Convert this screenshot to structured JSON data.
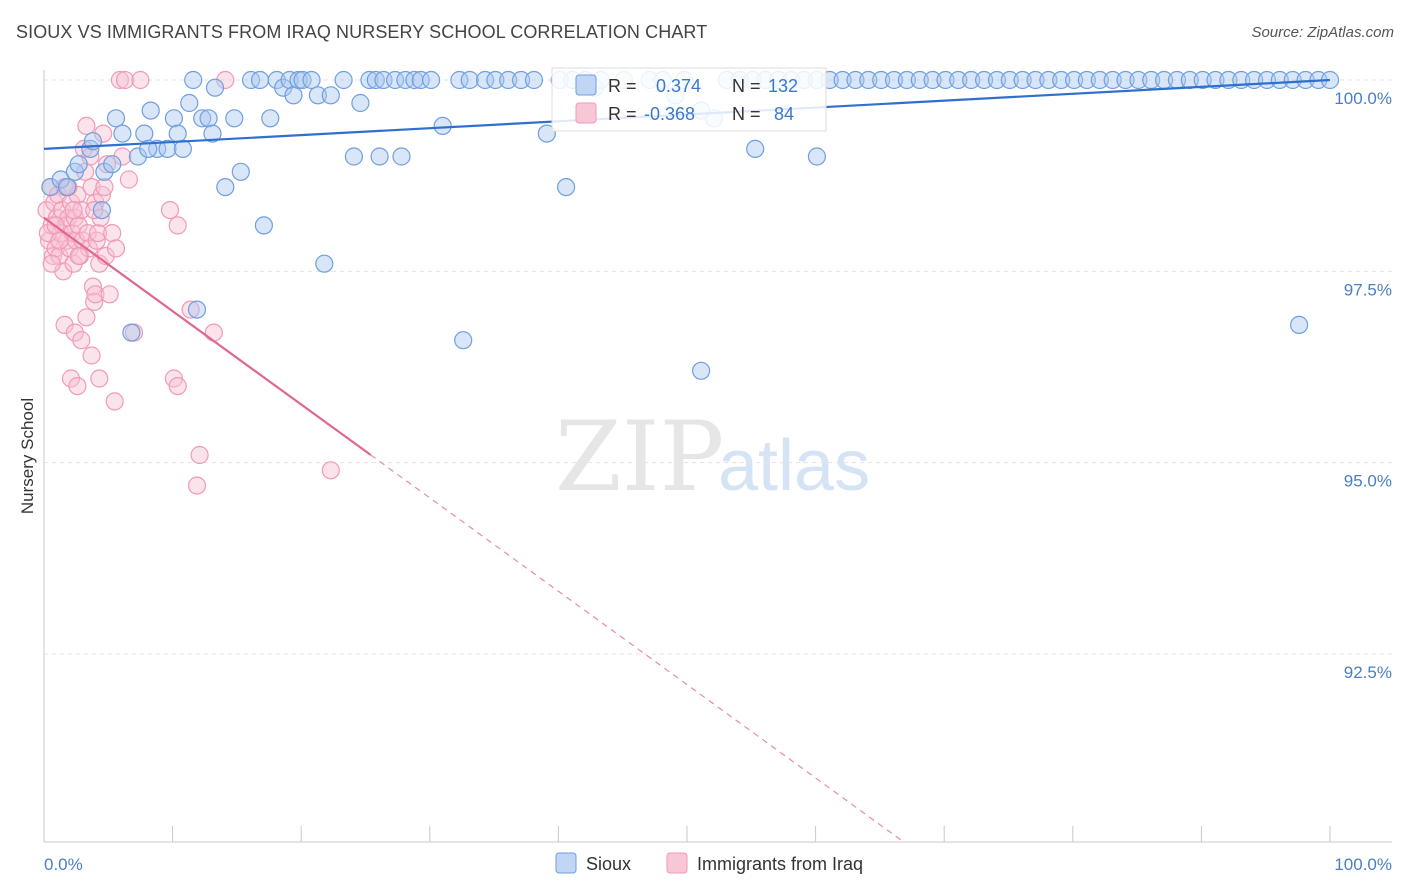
{
  "title": "SIOUX VS IMMIGRANTS FROM IRAQ NURSERY SCHOOL CORRELATION CHART",
  "source": "Source: ZipAtlas.com",
  "watermark": {
    "zip": "ZIP",
    "atlas": "atlas"
  },
  "colors": {
    "sioux": "#6f9fe0",
    "sioux_line": "#2f6fcf",
    "iraq": "#f19ab6",
    "iraq_line": "#e0688f",
    "axis_text": "#4a7fc1"
  },
  "stats": {
    "r_label": "R =",
    "n_label": "N =",
    "sioux": {
      "r": "0.374",
      "n": "132"
    },
    "iraq": {
      "r": "-0.368",
      "n": "84"
    }
  },
  "legend": {
    "sioux": "Sioux",
    "iraq": "Immigrants from Iraq"
  },
  "chart_data": {
    "type": "scatter",
    "title": "SIOUX VS IMMIGRANTS FROM IRAQ NURSERY SCHOOL CORRELATION CHART",
    "xlabel": "",
    "ylabel": "Nursery School",
    "xlim": [
      0,
      100
    ],
    "ylim": [
      90.0,
      100.4
    ],
    "x_tick_labels": [
      "0.0%",
      "100.0%"
    ],
    "y_ticks": [
      100.0,
      97.5,
      95.0,
      92.5
    ],
    "y_tick_labels": [
      "100.0%",
      "97.5%",
      "95.0%",
      "92.5%"
    ],
    "series": [
      {
        "name": "Sioux",
        "r": 0.374,
        "n": 132,
        "trend": {
          "x0": 0,
          "y0": 99.1,
          "x1": 100,
          "y1": 100.0,
          "dashed_from": null
        },
        "points": [
          [
            0.5,
            98.6
          ],
          [
            1.3,
            98.7
          ],
          [
            1.8,
            98.6
          ],
          [
            2.4,
            98.8
          ],
          [
            2.7,
            98.9
          ],
          [
            3.6,
            99.1
          ],
          [
            3.8,
            99.2
          ],
          [
            4.5,
            98.3
          ],
          [
            4.7,
            98.8
          ],
          [
            5.3,
            98.9
          ],
          [
            5.6,
            99.5
          ],
          [
            6.1,
            99.3
          ],
          [
            7.3,
            99.0
          ],
          [
            7.8,
            99.3
          ],
          [
            8.3,
            99.6
          ],
          [
            8.8,
            99.1
          ],
          [
            9.6,
            99.1
          ],
          [
            10.1,
            99.5
          ],
          [
            10.4,
            99.3
          ],
          [
            10.8,
            99.1
          ],
          [
            11.3,
            99.7
          ],
          [
            11.6,
            100.0
          ],
          [
            12.3,
            99.5
          ],
          [
            12.8,
            99.5
          ],
          [
            13.1,
            99.3
          ],
          [
            13.3,
            99.9
          ],
          [
            14.1,
            98.6
          ],
          [
            14.8,
            99.5
          ],
          [
            15.3,
            98.8
          ],
          [
            16.1,
            100.0
          ],
          [
            16.8,
            100.0
          ],
          [
            17.1,
            98.1
          ],
          [
            17.6,
            99.5
          ],
          [
            18.1,
            100.0
          ],
          [
            18.6,
            99.9
          ],
          [
            19.1,
            100.0
          ],
          [
            19.4,
            99.8
          ],
          [
            19.8,
            100.0
          ],
          [
            20.1,
            100.0
          ],
          [
            20.8,
            100.0
          ],
          [
            21.3,
            99.8
          ],
          [
            21.8,
            97.6
          ],
          [
            22.3,
            99.8
          ],
          [
            23.3,
            100.0
          ],
          [
            24.1,
            99.0
          ],
          [
            24.6,
            99.7
          ],
          [
            25.3,
            100.0
          ],
          [
            25.8,
            100.0
          ],
          [
            26.4,
            100.0
          ],
          [
            27.3,
            100.0
          ],
          [
            27.8,
            99.0
          ],
          [
            28.1,
            100.0
          ],
          [
            28.8,
            100.0
          ],
          [
            29.3,
            100.0
          ],
          [
            30.1,
            100.0
          ],
          [
            31.0,
            99.4
          ],
          [
            32.3,
            100.0
          ],
          [
            33.1,
            100.0
          ],
          [
            34.3,
            100.0
          ],
          [
            35.1,
            100.0
          ],
          [
            36.1,
            100.0
          ],
          [
            37.1,
            100.0
          ],
          [
            38.1,
            100.0
          ],
          [
            39.1,
            99.3
          ],
          [
            40.1,
            100.0
          ],
          [
            41.1,
            100.0
          ],
          [
            42.1,
            100.0
          ],
          [
            42.8,
            99.9
          ],
          [
            43.3,
            100.0
          ],
          [
            45.1,
            100.0
          ],
          [
            47.1,
            100.0
          ],
          [
            48.1,
            100.0
          ],
          [
            49.1,
            99.8
          ],
          [
            49.8,
            100.0
          ],
          [
            51.1,
            99.6
          ],
          [
            52.1,
            99.5
          ],
          [
            53.1,
            100.0
          ],
          [
            54.1,
            100.0
          ],
          [
            55.1,
            100.0
          ],
          [
            56.1,
            100.0
          ],
          [
            57.1,
            100.0
          ],
          [
            58.1,
            100.0
          ],
          [
            59.1,
            100.0
          ],
          [
            60.1,
            100.0
          ],
          [
            61.1,
            100.0
          ],
          [
            62.1,
            100.0
          ],
          [
            63.1,
            100.0
          ],
          [
            64.1,
            100.0
          ],
          [
            65.1,
            100.0
          ],
          [
            66.1,
            100.0
          ],
          [
            67.1,
            100.0
          ],
          [
            68.1,
            100.0
          ],
          [
            69.1,
            100.0
          ],
          [
            70.1,
            100.0
          ],
          [
            71.1,
            100.0
          ],
          [
            72.1,
            100.0
          ],
          [
            73.1,
            100.0
          ],
          [
            74.1,
            100.0
          ],
          [
            75.1,
            100.0
          ],
          [
            76.1,
            100.0
          ],
          [
            77.1,
            100.0
          ],
          [
            78.1,
            100.0
          ],
          [
            79.1,
            100.0
          ],
          [
            80.1,
            100.0
          ],
          [
            81.1,
            100.0
          ],
          [
            82.1,
            100.0
          ],
          [
            83.1,
            100.0
          ],
          [
            84.1,
            100.0
          ],
          [
            85.1,
            100.0
          ],
          [
            86.1,
            100.0
          ],
          [
            87.1,
            100.0
          ],
          [
            88.1,
            100.0
          ],
          [
            89.1,
            100.0
          ],
          [
            90.1,
            100.0
          ],
          [
            91.1,
            100.0
          ],
          [
            92.1,
            100.0
          ],
          [
            93.1,
            100.0
          ],
          [
            94.1,
            100.0
          ],
          [
            95.1,
            100.0
          ],
          [
            96.1,
            100.0
          ],
          [
            97.1,
            100.0
          ],
          [
            98.1,
            100.0
          ],
          [
            99.1,
            100.0
          ],
          [
            100.0,
            100.0
          ],
          [
            11.9,
            97.0
          ],
          [
            6.8,
            96.7
          ],
          [
            32.6,
            96.6
          ],
          [
            51.1,
            96.2
          ],
          [
            97.6,
            96.8
          ],
          [
            8.1,
            99.1
          ],
          [
            26.1,
            99.0
          ],
          [
            40.6,
            98.6
          ],
          [
            55.3,
            99.1
          ],
          [
            60.1,
            99.0
          ]
        ]
      },
      {
        "name": "Immigrants from Iraq",
        "r": -0.368,
        "n": 84,
        "trend": {
          "x0": 0,
          "y0": 98.2,
          "x1": 100,
          "y1": 86.0,
          "dashed_from": 25.4
        },
        "points": [
          [
            0.2,
            98.3
          ],
          [
            0.4,
            97.9
          ],
          [
            0.5,
            98.6
          ],
          [
            0.6,
            98.1
          ],
          [
            0.7,
            97.7
          ],
          [
            0.8,
            98.4
          ],
          [
            0.9,
            97.8
          ],
          [
            1.0,
            98.2
          ],
          [
            1.1,
            98.5
          ],
          [
            1.2,
            97.7
          ],
          [
            1.3,
            98.0
          ],
          [
            1.4,
            98.3
          ],
          [
            1.5,
            97.5
          ],
          [
            1.6,
            98.6
          ],
          [
            1.7,
            98.1
          ],
          [
            1.8,
            97.9
          ],
          [
            1.9,
            98.2
          ],
          [
            2.0,
            97.8
          ],
          [
            2.1,
            98.4
          ],
          [
            2.2,
            98.0
          ],
          [
            2.3,
            97.6
          ],
          [
            2.4,
            98.2
          ],
          [
            2.5,
            97.9
          ],
          [
            2.6,
            98.5
          ],
          [
            2.7,
            98.1
          ],
          [
            2.8,
            97.7
          ],
          [
            2.9,
            98.3
          ],
          [
            3.0,
            97.9
          ],
          [
            3.1,
            99.1
          ],
          [
            3.2,
            98.8
          ],
          [
            3.3,
            99.4
          ],
          [
            3.4,
            98.0
          ],
          [
            3.5,
            97.8
          ],
          [
            3.6,
            99.0
          ],
          [
            3.7,
            98.6
          ],
          [
            3.8,
            97.3
          ],
          [
            3.9,
            97.1
          ],
          [
            4.0,
            98.4
          ],
          [
            4.1,
            97.9
          ],
          [
            4.2,
            98.0
          ],
          [
            4.3,
            97.6
          ],
          [
            4.4,
            98.2
          ],
          [
            4.5,
            98.5
          ],
          [
            4.6,
            99.3
          ],
          [
            4.7,
            98.6
          ],
          [
            4.8,
            97.7
          ],
          [
            5.3,
            98.0
          ],
          [
            5.6,
            97.8
          ],
          [
            1.6,
            96.8
          ],
          [
            2.1,
            96.1
          ],
          [
            2.4,
            96.7
          ],
          [
            2.6,
            96.0
          ],
          [
            2.9,
            96.6
          ],
          [
            3.3,
            96.9
          ],
          [
            3.7,
            96.4
          ],
          [
            4.0,
            97.2
          ],
          [
            4.3,
            96.1
          ],
          [
            5.5,
            95.8
          ],
          [
            7.0,
            96.7
          ],
          [
            9.8,
            98.3
          ],
          [
            10.4,
            98.1
          ],
          [
            10.1,
            96.1
          ],
          [
            10.4,
            96.0
          ],
          [
            11.4,
            97.0
          ],
          [
            12.1,
            95.1
          ],
          [
            11.9,
            94.7
          ],
          [
            13.2,
            96.7
          ],
          [
            22.3,
            94.9
          ],
          [
            5.9,
            100.0
          ],
          [
            6.3,
            100.0
          ],
          [
            7.5,
            100.0
          ],
          [
            14.1,
            100.0
          ],
          [
            6.1,
            99.0
          ],
          [
            6.6,
            98.7
          ],
          [
            0.3,
            98.0
          ],
          [
            0.9,
            98.1
          ],
          [
            1.9,
            98.6
          ],
          [
            2.7,
            97.7
          ],
          [
            3.9,
            98.3
          ],
          [
            4.9,
            98.9
          ],
          [
            0.6,
            97.6
          ],
          [
            1.2,
            97.9
          ],
          [
            2.3,
            98.3
          ],
          [
            5.1,
            97.2
          ]
        ]
      }
    ],
    "legend_position": "bottom-center"
  }
}
